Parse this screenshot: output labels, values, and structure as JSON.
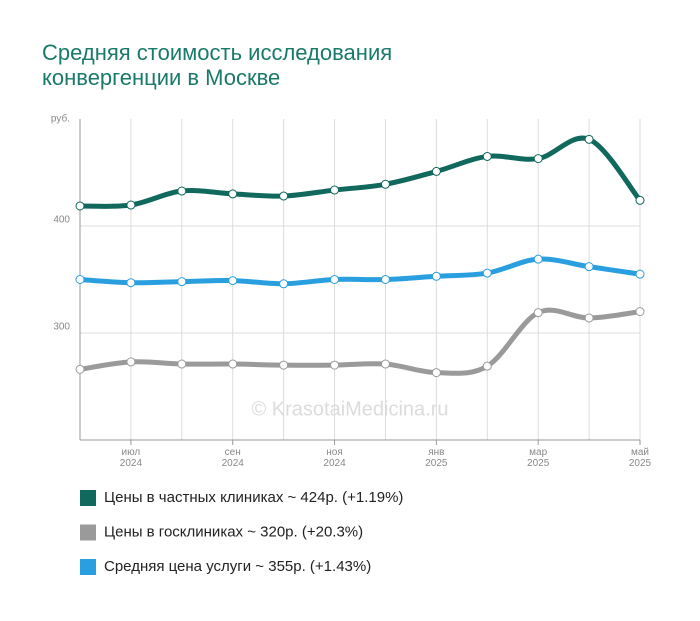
{
  "chart_data": {
    "type": "line",
    "title": [
      "Средняя стоимость исследования",
      "конвергенции в Москве"
    ],
    "y_label": "руб.",
    "watermark": "© KrasotaiMedicina.ru",
    "categories": [
      null,
      "июл 2024",
      null,
      "сен 2024",
      null,
      "ноя 2024",
      null,
      "янв 2025",
      null,
      "мар 2025",
      null,
      "май 2025"
    ],
    "ylim": [
      200,
      500
    ],
    "yticks": [
      300,
      400
    ],
    "grid": true,
    "series": [
      {
        "name": "Цены в частных клиниках ~ 424р. (+1.19%)",
        "color": "#11685d",
        "values": [
          418.7,
          419.6,
          432.7,
          430,
          428,
          433.6,
          439,
          451,
          465,
          463,
          481,
          424
        ]
      },
      {
        "name": "Цены в госклиниках ~ 320р. (+20.3%)",
        "color": "#9a9a9a",
        "values": [
          266,
          273,
          271,
          271,
          270,
          270,
          271,
          263,
          269,
          319,
          314,
          320
        ]
      },
      {
        "name": "Средняя цена услуги ~ 355р. (+1.43%)",
        "color": "#2a9fe0",
        "values": [
          350,
          347,
          348,
          349,
          346,
          350,
          350,
          353,
          356,
          369,
          362,
          355
        ]
      }
    ]
  }
}
